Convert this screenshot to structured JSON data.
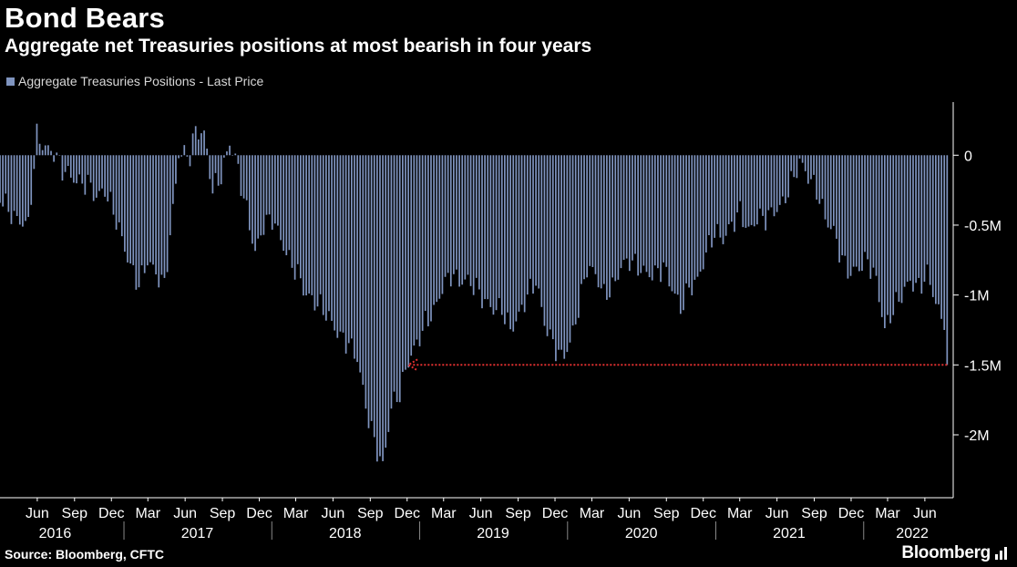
{
  "title": "Bond Bears",
  "subtitle": "Aggregate net Treasuries positions at most bearish in four years",
  "legend_label": "Aggregate Treasuries Positions - Last Price",
  "source": "Source: Bloomberg, CFTC",
  "brand": "Bloomberg",
  "colors": {
    "bars": "#7f94bf",
    "annotation": "#e03030",
    "axis": "#ffffff",
    "background": "#000000"
  },
  "chart_data": {
    "type": "bar",
    "series": [
      {
        "name": "Aggregate Treasuries Positions - Last Price",
        "anchors": [
          [
            "2016-03-01",
            -0.3
          ],
          [
            "2016-04-05",
            -0.45
          ],
          [
            "2016-05-10",
            -0.5
          ],
          [
            "2016-05-31",
            0.14
          ],
          [
            "2016-06-21",
            0.05
          ],
          [
            "2016-07-12",
            0.02
          ],
          [
            "2016-08-02",
            -0.1
          ],
          [
            "2016-08-23",
            -0.15
          ],
          [
            "2016-09-13",
            -0.2
          ],
          [
            "2016-10-04",
            -0.2
          ],
          [
            "2016-10-25",
            -0.3
          ],
          [
            "2016-11-15",
            -0.25
          ],
          [
            "2016-12-06",
            -0.4
          ],
          [
            "2016-12-27",
            -0.6
          ],
          [
            "2017-01-17",
            -0.8
          ],
          [
            "2017-02-07",
            -0.93
          ],
          [
            "2017-02-28",
            -0.75
          ],
          [
            "2017-03-21",
            -0.85
          ],
          [
            "2017-04-11",
            -0.93
          ],
          [
            "2017-05-02",
            -0.4
          ],
          [
            "2017-05-16",
            0.01
          ],
          [
            "2017-06-13",
            0.0
          ],
          [
            "2017-06-27",
            0.18
          ],
          [
            "2017-07-18",
            0.15
          ],
          [
            "2017-08-08",
            -0.25
          ],
          [
            "2017-08-29",
            -0.15
          ],
          [
            "2017-09-19",
            0.09
          ],
          [
            "2017-10-03",
            -0.02
          ],
          [
            "2017-10-31",
            -0.4
          ],
          [
            "2017-11-21",
            -0.7
          ],
          [
            "2017-12-12",
            -0.5
          ],
          [
            "2018-01-02",
            -0.45
          ],
          [
            "2018-01-23",
            -0.6
          ],
          [
            "2018-02-13",
            -0.75
          ],
          [
            "2018-03-06",
            -0.85
          ],
          [
            "2018-03-27",
            -1.0
          ],
          [
            "2018-04-17",
            -1.05
          ],
          [
            "2018-05-08",
            -1.1
          ],
          [
            "2018-05-29",
            -1.2
          ],
          [
            "2018-06-19",
            -1.3
          ],
          [
            "2018-07-10",
            -1.35
          ],
          [
            "2018-07-31",
            -1.45
          ],
          [
            "2018-08-21",
            -1.8
          ],
          [
            "2018-09-11",
            -2.05
          ],
          [
            "2018-10-02",
            -2.23
          ],
          [
            "2018-10-23",
            -1.8
          ],
          [
            "2018-11-13",
            -1.7
          ],
          [
            "2018-12-04",
            -1.47
          ],
          [
            "2018-12-25",
            -1.35
          ],
          [
            "2019-01-15",
            -1.2
          ],
          [
            "2019-02-05",
            -1.12
          ],
          [
            "2019-02-26",
            -0.95
          ],
          [
            "2019-03-19",
            -0.85
          ],
          [
            "2019-04-09",
            -0.9
          ],
          [
            "2019-04-30",
            -0.9
          ],
          [
            "2019-05-21",
            -0.95
          ],
          [
            "2019-06-11",
            -1.05
          ],
          [
            "2019-07-02",
            -1.1
          ],
          [
            "2019-07-23",
            -1.1
          ],
          [
            "2019-08-13",
            -1.25
          ],
          [
            "2019-09-03",
            -1.15
          ],
          [
            "2019-09-24",
            -1.0
          ],
          [
            "2019-10-15",
            -0.9
          ],
          [
            "2019-11-05",
            -1.2
          ],
          [
            "2019-11-26",
            -1.35
          ],
          [
            "2019-12-17",
            -1.45
          ],
          [
            "2020-01-07",
            -1.35
          ],
          [
            "2020-01-28",
            -1.1
          ],
          [
            "2020-02-18",
            -0.8
          ],
          [
            "2020-03-10",
            -0.85
          ],
          [
            "2020-03-31",
            -1.0
          ],
          [
            "2020-04-21",
            -0.95
          ],
          [
            "2020-05-12",
            -0.8
          ],
          [
            "2020-06-02",
            -0.75
          ],
          [
            "2020-06-23",
            -0.8
          ],
          [
            "2020-07-14",
            -0.85
          ],
          [
            "2020-08-04",
            -0.85
          ],
          [
            "2020-08-25",
            -0.8
          ],
          [
            "2020-09-15",
            -0.95
          ],
          [
            "2020-10-06",
            -1.1
          ],
          [
            "2020-10-27",
            -0.95
          ],
          [
            "2020-11-17",
            -0.9
          ],
          [
            "2020-12-08",
            -0.7
          ],
          [
            "2020-12-29",
            -0.55
          ],
          [
            "2021-01-19",
            -0.6
          ],
          [
            "2021-02-09",
            -0.5
          ],
          [
            "2021-03-02",
            -0.4
          ],
          [
            "2021-03-23",
            -0.55
          ],
          [
            "2021-04-13",
            -0.45
          ],
          [
            "2021-05-04",
            -0.45
          ],
          [
            "2021-05-25",
            -0.4
          ],
          [
            "2021-06-15",
            -0.35
          ],
          [
            "2021-07-06",
            -0.2
          ],
          [
            "2021-07-27",
            -0.05
          ],
          [
            "2021-08-17",
            -0.15
          ],
          [
            "2021-09-07",
            -0.25
          ],
          [
            "2021-09-28",
            -0.45
          ],
          [
            "2021-10-19",
            -0.55
          ],
          [
            "2021-11-09",
            -0.75
          ],
          [
            "2021-11-30",
            -0.85
          ],
          [
            "2021-12-21",
            -0.8
          ],
          [
            "2022-01-11",
            -0.75
          ],
          [
            "2022-02-01",
            -0.9
          ],
          [
            "2022-02-22",
            -1.25
          ],
          [
            "2022-03-15",
            -1.1
          ],
          [
            "2022-04-05",
            -1.0
          ],
          [
            "2022-04-26",
            -0.9
          ],
          [
            "2022-05-17",
            -0.95
          ],
          [
            "2022-06-07",
            -0.85
          ],
          [
            "2022-06-28",
            -1.05
          ],
          [
            "2022-07-19",
            -1.25
          ],
          [
            "2022-07-26",
            -1.5
          ]
        ]
      }
    ],
    "x_range": [
      "2016-03-01",
      "2022-08-10"
    ],
    "ylim": [
      -2.45,
      0.38
    ],
    "y_ticks": [
      {
        "value": 0,
        "label": "0"
      },
      {
        "value": -0.5,
        "label": "-0.5M"
      },
      {
        "value": -1.0,
        "label": "-1M"
      },
      {
        "value": -1.5,
        "label": "-1.5M"
      },
      {
        "value": -2.0,
        "label": "-2M"
      }
    ],
    "x_month_ticks": [
      "2016-06-01",
      "2016-09-01",
      "2016-12-01",
      "2017-03-01",
      "2017-06-01",
      "2017-09-01",
      "2017-12-01",
      "2018-03-01",
      "2018-06-01",
      "2018-09-01",
      "2018-12-01",
      "2019-03-01",
      "2019-06-01",
      "2019-09-01",
      "2019-12-01",
      "2020-03-01",
      "2020-06-01",
      "2020-09-01",
      "2020-12-01",
      "2021-03-01",
      "2021-06-01",
      "2021-09-01",
      "2021-12-01",
      "2022-03-01",
      "2022-06-01"
    ],
    "x_month_labels": [
      "Jun",
      "Sep",
      "Dec",
      "Mar",
      "Jun",
      "Sep",
      "Dec",
      "Mar",
      "Jun",
      "Sep",
      "Dec",
      "Mar",
      "Jun",
      "Sep",
      "Dec",
      "Mar",
      "Jun",
      "Sep",
      "Dec",
      "Mar",
      "Jun",
      "Sep",
      "Dec",
      "Mar",
      "Jun"
    ],
    "x_year_labels": [
      {
        "label": "2016",
        "center": "2016-07-15"
      },
      {
        "label": "2017",
        "center": "2017-07-01"
      },
      {
        "label": "2018",
        "center": "2018-07-01"
      },
      {
        "label": "2019",
        "center": "2019-07-01"
      },
      {
        "label": "2020",
        "center": "2020-07-01"
      },
      {
        "label": "2021",
        "center": "2021-07-01"
      },
      {
        "label": "2022",
        "center": "2022-05-01"
      }
    ],
    "year_separators": [
      "2017-01-01",
      "2018-01-01",
      "2019-01-01",
      "2020-01-01",
      "2021-01-01",
      "2022-01-01"
    ],
    "annotation": {
      "type": "reference-arrow",
      "value": -1.5,
      "from": "2022-07-26",
      "to": "2018-12-04"
    },
    "grid": false,
    "legend_position": "top-left"
  }
}
